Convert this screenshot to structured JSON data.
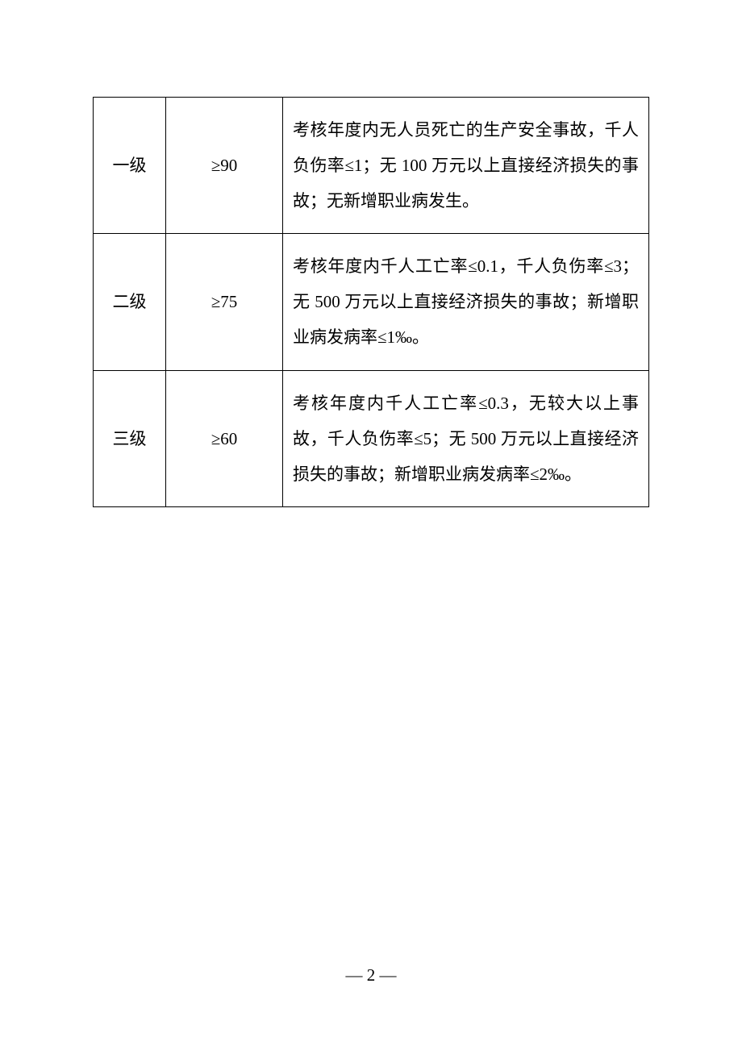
{
  "table": {
    "columns": {
      "level_width": 90,
      "score_width": 145
    },
    "border_color": "#000000",
    "border_width": 1.5,
    "font_size": 21,
    "line_height": 2.1,
    "text_color": "#000000",
    "background_color": "#ffffff",
    "rows": [
      {
        "level": "一级",
        "score": "≥90",
        "description": "考核年度内无人员死亡的生产安全事故，千人负伤率≤1；无 100 万元以上直接经济损失的事故；无新增职业病发生。"
      },
      {
        "level": "二级",
        "score": "≥75",
        "description": "考核年度内千人工亡率≤0.1，千人负伤率≤3；无 500 万元以上直接经济损失的事故；新增职业病发病率≤1‰。"
      },
      {
        "level": "三级",
        "score": "≥60",
        "description": "考核年度内千人工亡率≤0.3，无较大以上事故，千人负伤率≤5；无 500 万元以上直接经济损失的事故；新增职业病发病率≤2‰。"
      }
    ]
  },
  "page_number": "— 2 —"
}
